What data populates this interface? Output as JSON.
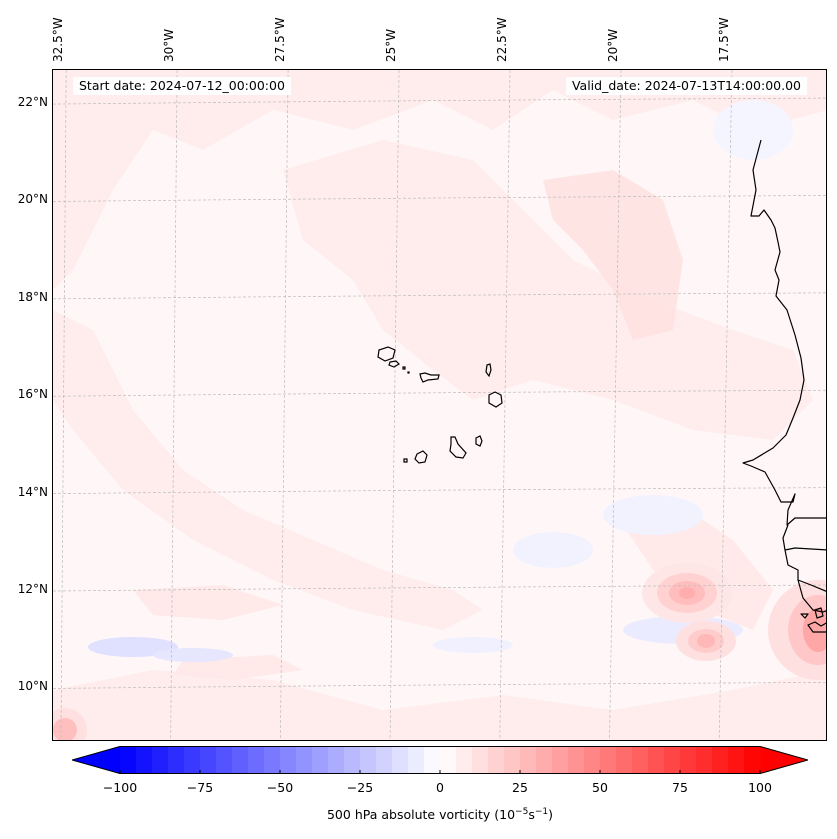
{
  "figure": {
    "start_date_text": "Start date: 2024-07-12_00:00:00",
    "valid_date_text": "Valid_date: 2024-07-13T14:00:00.00"
  },
  "map": {
    "variable": "500 hPa absolute vorticity",
    "extent": {
      "lon_min": -32.7,
      "lon_max": -15.1,
      "lat_min": 8.9,
      "lat_max": 22.7
    },
    "lon_ticks": [
      {
        "value": -32.5,
        "label": "32.5°W"
      },
      {
        "value": -30.0,
        "label": "30°W"
      },
      {
        "value": -27.5,
        "label": "27.5°W"
      },
      {
        "value": -25.0,
        "label": "25°W"
      },
      {
        "value": -22.5,
        "label": "22.5°W"
      },
      {
        "value": -20.0,
        "label": "20°W"
      },
      {
        "value": -17.5,
        "label": "17.5°W"
      }
    ],
    "lat_ticks": [
      {
        "value": 22,
        "label": "22°N"
      },
      {
        "value": 20,
        "label": "20°N"
      },
      {
        "value": 18,
        "label": "18°N"
      },
      {
        "value": 16,
        "label": "16°N"
      },
      {
        "value": 14,
        "label": "14°N"
      },
      {
        "value": 12,
        "label": "12°N"
      },
      {
        "value": 10,
        "label": "10°N"
      }
    ],
    "features": [
      {
        "name": "Cape Verde Islands",
        "type": "island-group",
        "lon": -24.0,
        "lat": 16.0
      },
      {
        "name": "West African coastline",
        "type": "coastline"
      },
      {
        "name": "vorticity maximum near 18.5W 11.8N",
        "value_approx": 30
      },
      {
        "name": "vorticity maximum near 18W 10.9N",
        "value_approx": 25
      },
      {
        "name": "vorticity maximum near 15.3W 11N",
        "value_approx": 40
      },
      {
        "name": "negative vorticity band near 31W 10.8N",
        "value_approx": -15
      }
    ]
  },
  "colorbar": {
    "label_main": "500 hPa absolute vorticity (10",
    "label_exp1": "−5",
    "label_mid": "s",
    "label_exp2": "−1",
    "label_end": ")",
    "min": -100,
    "max": 100,
    "step": 5,
    "extend": "both",
    "low_color": "#0000ff",
    "mid_color": "#ffffff",
    "high_color": "#ff0000",
    "ticks": [
      {
        "value": -100,
        "label": "−100"
      },
      {
        "value": -75,
        "label": "−75"
      },
      {
        "value": -50,
        "label": "−50"
      },
      {
        "value": -25,
        "label": "−25"
      },
      {
        "value": 0,
        "label": "0"
      },
      {
        "value": 25,
        "label": "25"
      },
      {
        "value": 50,
        "label": "50"
      },
      {
        "value": 75,
        "label": "75"
      },
      {
        "value": 100,
        "label": "100"
      }
    ]
  }
}
